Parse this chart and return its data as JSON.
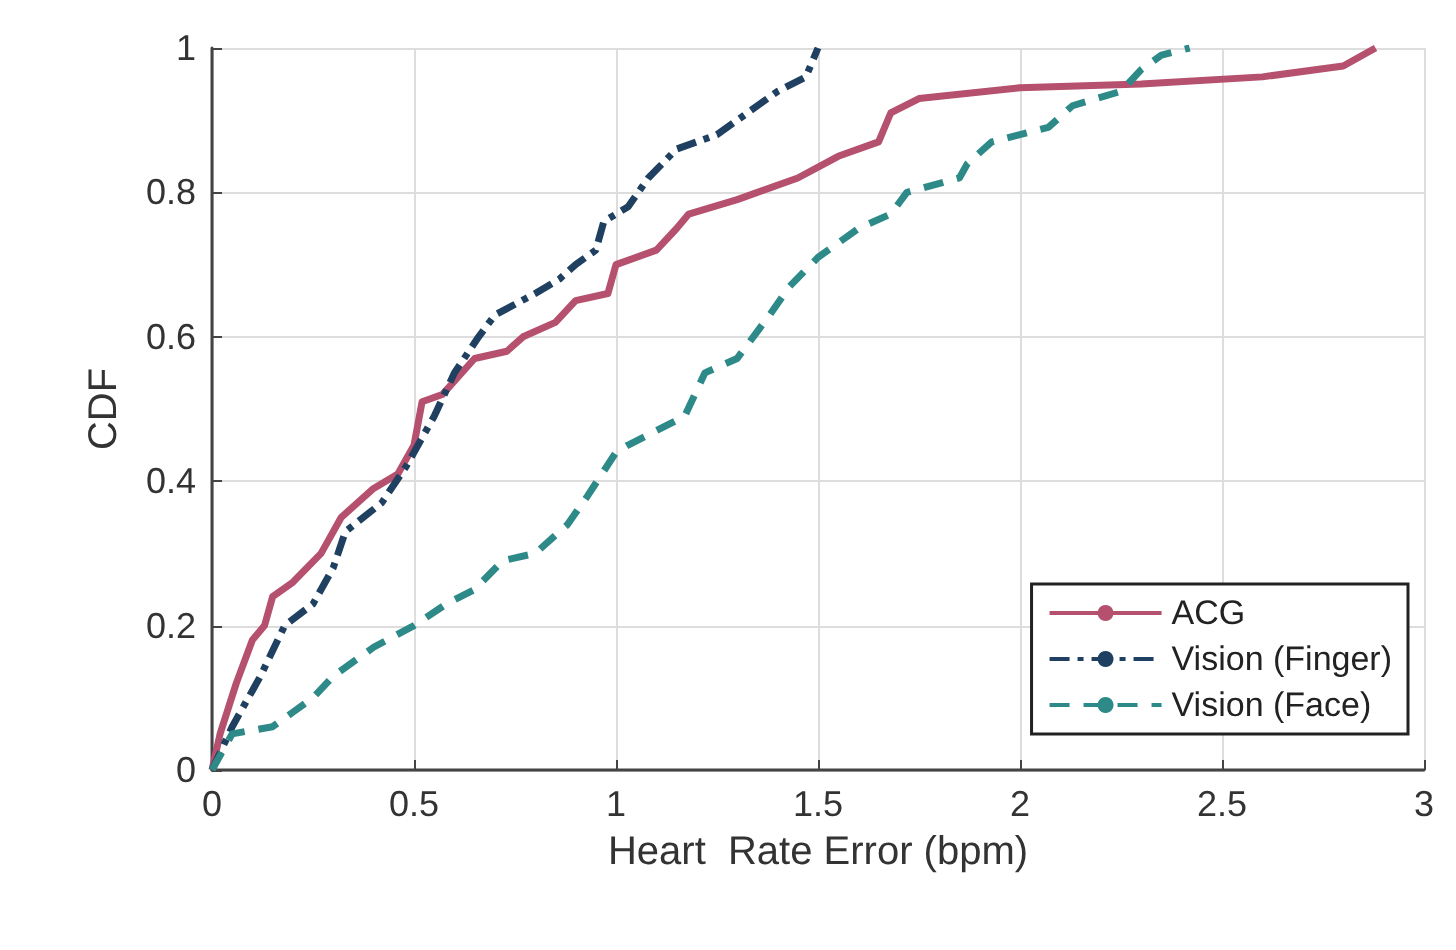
{
  "chart_data": {
    "type": "line",
    "xlabel": "Heart  Rate Error (bpm)",
    "ylabel": "CDF",
    "xlim": [
      0,
      3
    ],
    "xticks": [
      0,
      0.5,
      1,
      1.5,
      2,
      2.5,
      3
    ],
    "ylim": [
      0,
      1
    ],
    "yticks": [
      0,
      0.2,
      0.4,
      0.6,
      0.8,
      1
    ],
    "grid": true,
    "legend": "bottom right",
    "marker": "none",
    "series": [
      {
        "name": "ACG",
        "color": "#b5506e",
        "line_style": "solid",
        "x": [
          0,
          0.02,
          0.06,
          0.1,
          0.13,
          0.15,
          0.2,
          0.27,
          0.32,
          0.4,
          0.46,
          0.5,
          0.52,
          0.57,
          0.65,
          0.73,
          0.77,
          0.85,
          0.9,
          0.98,
          1.0,
          1.1,
          1.15,
          1.18,
          1.3,
          1.45,
          1.55,
          1.65,
          1.68,
          1.75,
          2.0,
          2.3,
          2.6,
          2.8,
          2.88
        ],
        "values": [
          0,
          0.05,
          0.12,
          0.18,
          0.2,
          0.24,
          0.26,
          0.3,
          0.35,
          0.39,
          0.41,
          0.45,
          0.51,
          0.52,
          0.57,
          0.58,
          0.6,
          0.62,
          0.65,
          0.66,
          0.7,
          0.72,
          0.75,
          0.77,
          0.79,
          0.82,
          0.85,
          0.87,
          0.91,
          0.93,
          0.945,
          0.95,
          0.96,
          0.975,
          1.0
        ]
      },
      {
        "name": "Vision (Finger)",
        "color": "#1f4060",
        "line_style": "dashdot",
        "x": [
          0,
          0.05,
          0.12,
          0.18,
          0.25,
          0.3,
          0.33,
          0.42,
          0.48,
          0.55,
          0.6,
          0.66,
          0.7,
          0.8,
          0.86,
          0.9,
          0.95,
          0.97,
          1.03,
          1.08,
          1.15,
          1.25,
          1.3,
          1.4,
          1.47,
          1.5
        ],
        "values": [
          0,
          0.06,
          0.13,
          0.2,
          0.23,
          0.28,
          0.33,
          0.37,
          0.42,
          0.49,
          0.55,
          0.6,
          0.63,
          0.66,
          0.68,
          0.7,
          0.72,
          0.76,
          0.78,
          0.82,
          0.86,
          0.88,
          0.9,
          0.94,
          0.96,
          1.0
        ]
      },
      {
        "name": "Vision (Face)",
        "color": "#2e8a88",
        "line_style": "dashed",
        "x": [
          0,
          0.05,
          0.15,
          0.2,
          0.25,
          0.3,
          0.4,
          0.5,
          0.58,
          0.65,
          0.72,
          0.8,
          0.88,
          0.93,
          1.0,
          1.03,
          1.1,
          1.17,
          1.22,
          1.3,
          1.38,
          1.43,
          1.5,
          1.6,
          1.68,
          1.72,
          1.85,
          1.87,
          1.93,
          2.07,
          2.13,
          2.25,
          2.3,
          2.35,
          2.42
        ],
        "values": [
          0,
          0.05,
          0.06,
          0.08,
          0.1,
          0.13,
          0.17,
          0.2,
          0.23,
          0.25,
          0.29,
          0.3,
          0.34,
          0.38,
          0.44,
          0.45,
          0.47,
          0.49,
          0.55,
          0.57,
          0.63,
          0.67,
          0.71,
          0.75,
          0.77,
          0.8,
          0.82,
          0.84,
          0.87,
          0.89,
          0.92,
          0.94,
          0.97,
          0.99,
          1.0
        ]
      }
    ]
  }
}
